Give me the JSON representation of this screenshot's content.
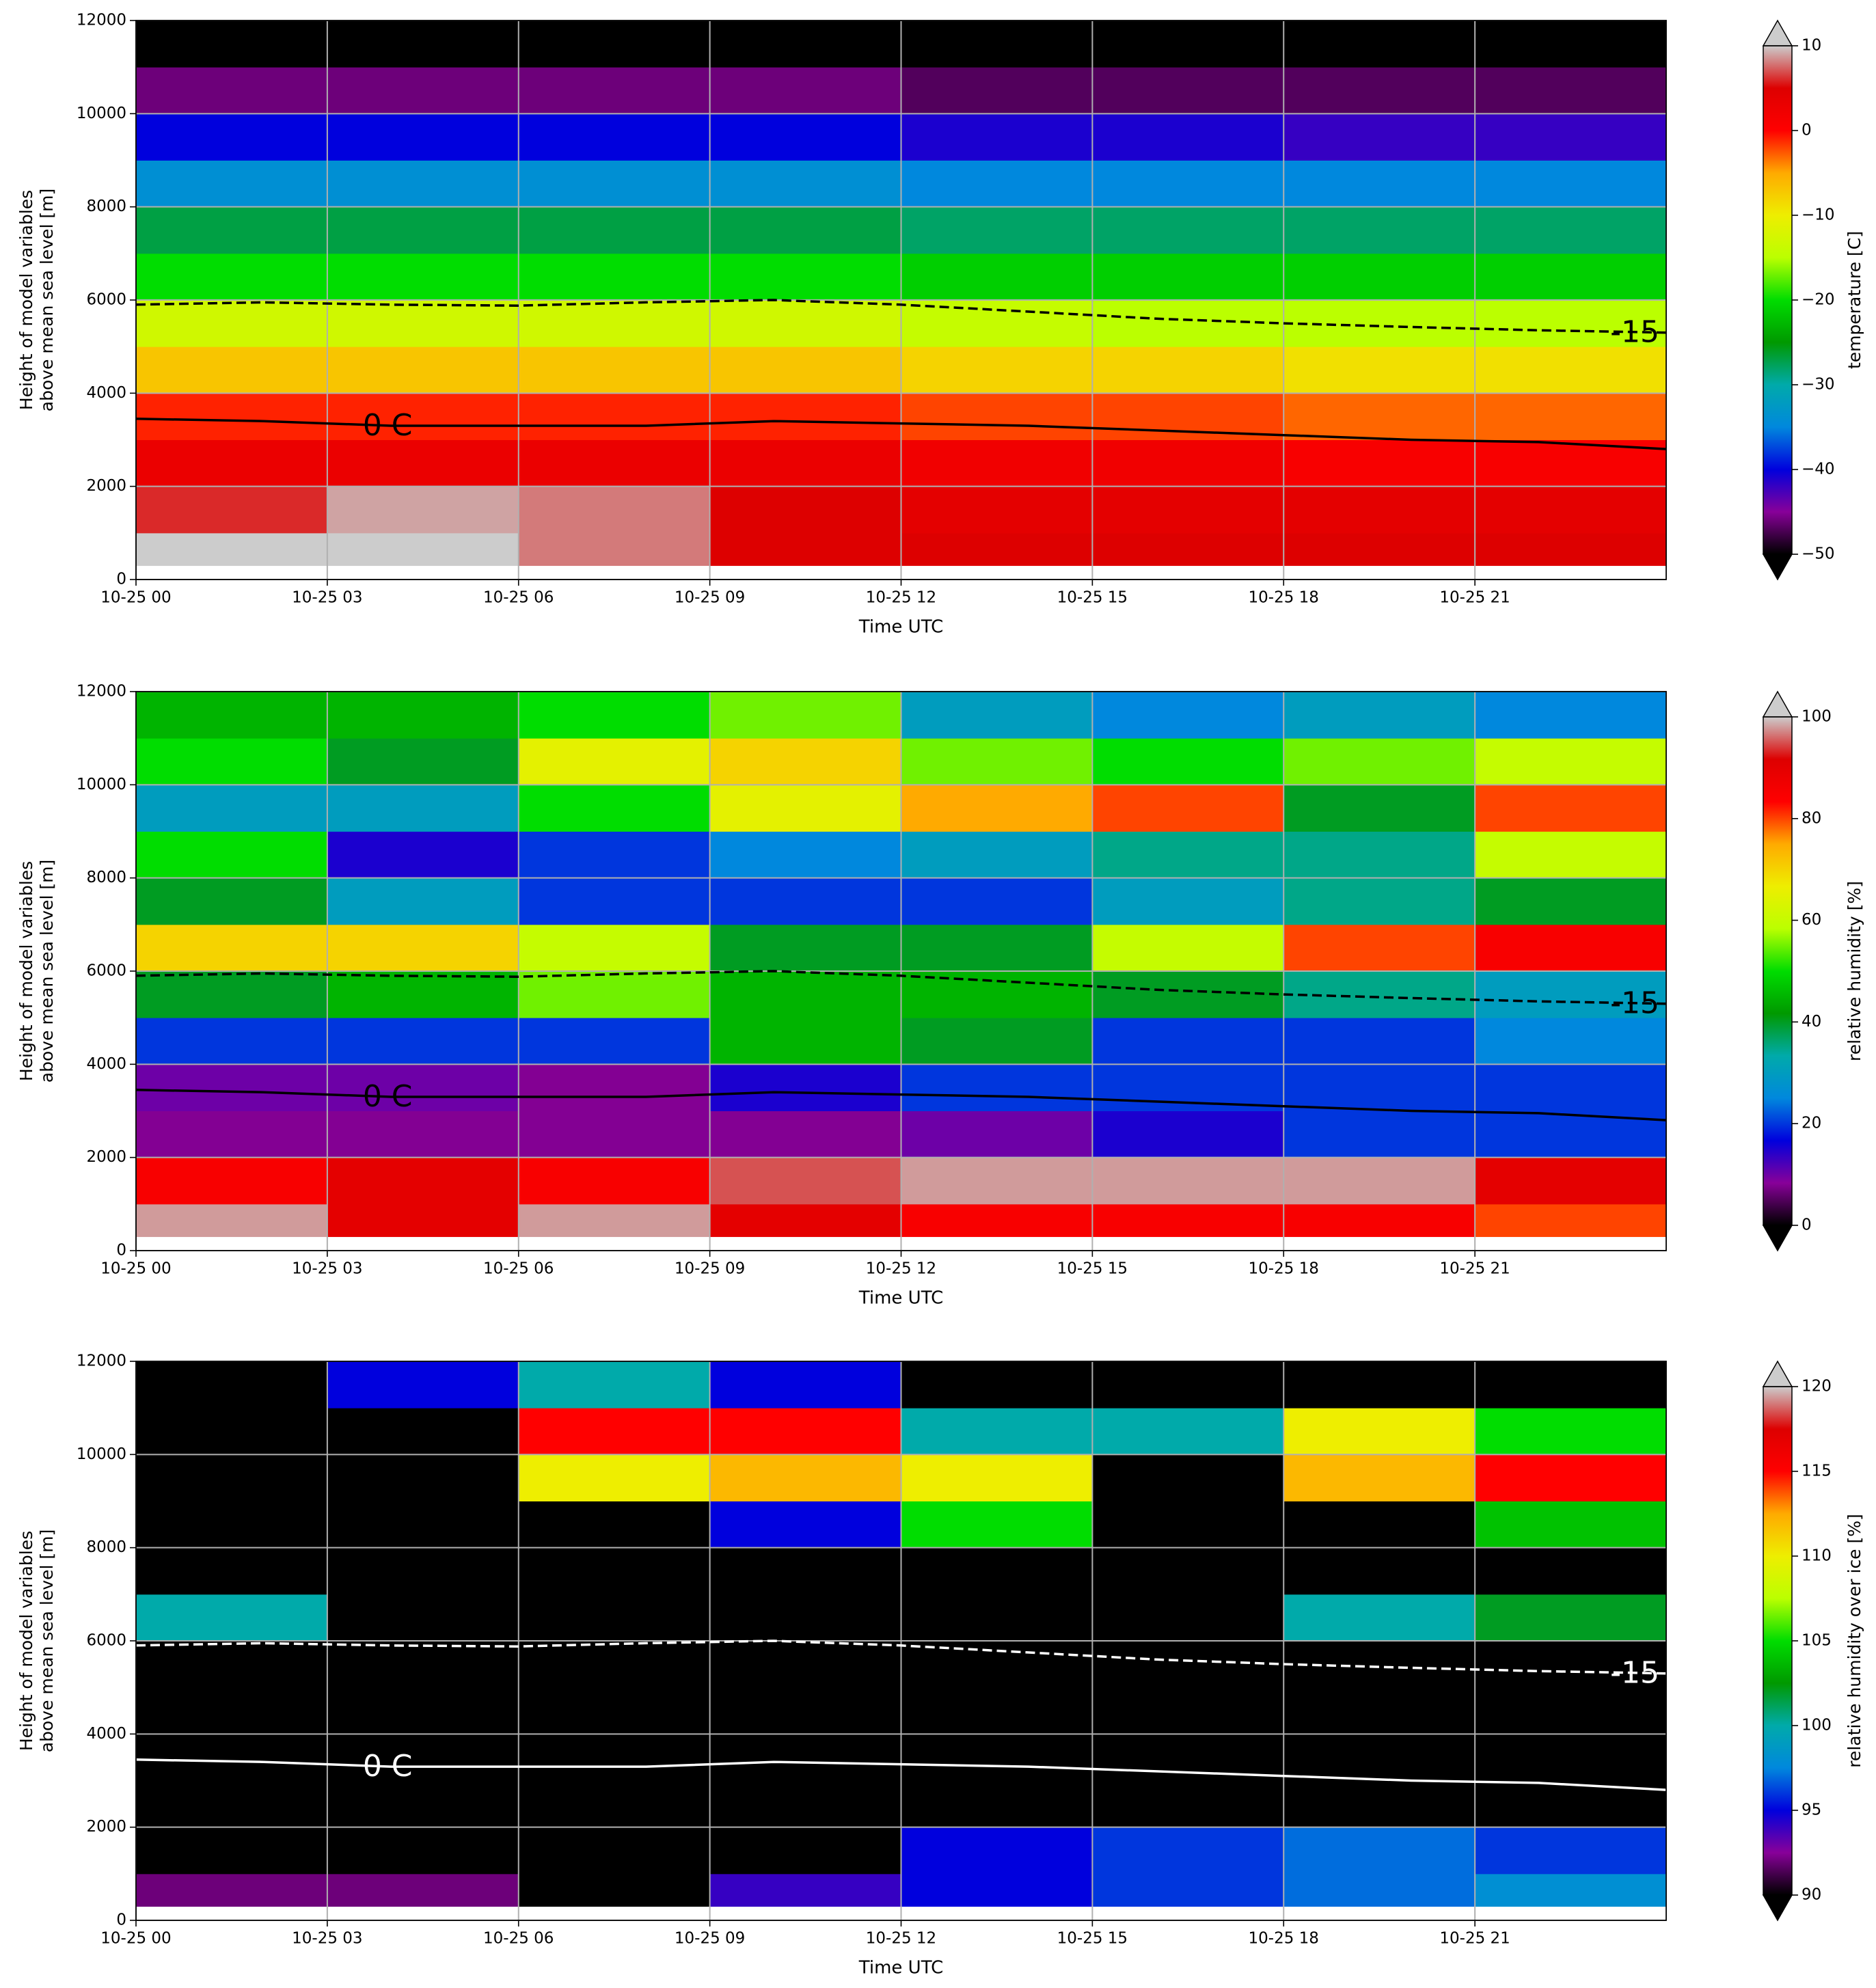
{
  "chart_data": [
    {
      "type": "heatmap",
      "xlabel": "Time UTC",
      "ylabel": [
        "Height of model variables",
        "above mean sea level [m]"
      ],
      "colorbar_label": "temperature [C]",
      "clim": [
        -50,
        10
      ],
      "cticks": [
        {
          "value": -50,
          "label": "−50"
        },
        {
          "value": -40,
          "label": "−40"
        },
        {
          "value": -30,
          "label": "−30"
        },
        {
          "value": -20,
          "label": "−20"
        },
        {
          "value": -10,
          "label": "−10"
        },
        0,
        10
      ],
      "colormap": [
        "#000000",
        "#880099",
        "#0000dd",
        "#0088dd",
        "#00aaaa",
        "#009900",
        "#00dd00",
        "#bbff00",
        "#eeee00",
        "#ffaa00",
        "#ff0000",
        "#dd0000",
        "#cccccc"
      ],
      "xlim": [
        0,
        24
      ],
      "ylim": [
        0,
        12000
      ],
      "xticks": [
        {
          "value": 0,
          "label": "10-25 00"
        },
        {
          "value": 3,
          "label": "10-25 03"
        },
        {
          "value": 6,
          "label": "10-25 06"
        },
        {
          "value": 9,
          "label": "10-25 09"
        },
        {
          "value": 12,
          "label": "10-25 12"
        },
        {
          "value": 15,
          "label": "10-25 15"
        },
        {
          "value": 18,
          "label": "10-25 18"
        },
        {
          "value": 21,
          "label": "10-25 21"
        }
      ],
      "yticks": [
        0,
        2000,
        4000,
        6000,
        8000,
        10000,
        12000
      ],
      "grid": true,
      "x_bins": [
        0,
        3,
        6,
        9,
        12,
        15,
        18,
        21,
        24
      ],
      "y_bins": [
        300,
        1000,
        2000,
        3000,
        4000,
        5000,
        6000,
        7000,
        8000,
        9000,
        10000,
        11000,
        12000
      ],
      "z": [
        [
          11,
          11,
          8,
          5,
          5,
          5,
          5,
          5
        ],
        [
          6,
          9,
          8,
          5,
          4,
          4,
          4,
          4
        ],
        [
          3,
          3,
          3,
          3,
          2,
          2,
          1,
          1
        ],
        [
          -1,
          -1,
          -1,
          -1,
          -2,
          -2,
          -3,
          -3
        ],
        [
          -7,
          -7,
          -7,
          -7,
          -8,
          -8,
          -9,
          -9
        ],
        [
          -13,
          -13,
          -13,
          -13,
          -14,
          -15,
          -15,
          -15
        ],
        [
          -20,
          -20,
          -20,
          -20,
          -21,
          -21,
          -21,
          -21
        ],
        [
          -27,
          -27,
          -27,
          -27,
          -28,
          -28,
          -28,
          -28
        ],
        [
          -34,
          -34,
          -34,
          -34,
          -35,
          -35,
          -35,
          -35
        ],
        [
          -40,
          -40,
          -40,
          -40,
          -41,
          -41,
          -42,
          -42
        ],
        [
          -46,
          -46,
          -46,
          -46,
          -47,
          -47,
          -47,
          -47
        ],
        [
          -55,
          -55,
          -55,
          -55,
          -55,
          -55,
          -55,
          -55
        ]
      ],
      "contour_color": "#000000",
      "contour_x": [
        0,
        2,
        4,
        6,
        8,
        10,
        12,
        14,
        16,
        18,
        20,
        22,
        24
      ],
      "contours": [
        {
          "label": "0 C",
          "style": "solid",
          "values": [
            3450,
            3400,
            3300,
            3300,
            3300,
            3400,
            3350,
            3300,
            3200,
            3100,
            3000,
            2950,
            2800
          ]
        },
        {
          "label": "-15",
          "style": "dashed",
          "values": [
            5900,
            5950,
            5900,
            5880,
            5950,
            6000,
            5900,
            5750,
            5600,
            5500,
            5420,
            5350,
            5300
          ]
        }
      ]
    },
    {
      "type": "heatmap",
      "xlabel": "Time UTC",
      "ylabel": [
        "Height of model variables",
        "above mean sea level [m]"
      ],
      "colorbar_label": "relative humidity [%]",
      "clim": [
        0,
        100
      ],
      "cticks": [
        0,
        20,
        40,
        60,
        80,
        100
      ],
      "colormap": [
        "#000000",
        "#880099",
        "#0000dd",
        "#0088dd",
        "#00aaaa",
        "#009900",
        "#00dd00",
        "#bbff00",
        "#eeee00",
        "#ffaa00",
        "#ff0000",
        "#dd0000",
        "#cccccc"
      ],
      "xlim": [
        0,
        24
      ],
      "ylim": [
        0,
        12000
      ],
      "xticks": [
        {
          "value": 0,
          "label": "10-25 00"
        },
        {
          "value": 3,
          "label": "10-25 03"
        },
        {
          "value": 6,
          "label": "10-25 06"
        },
        {
          "value": 9,
          "label": "10-25 09"
        },
        {
          "value": 12,
          "label": "10-25 12"
        },
        {
          "value": 15,
          "label": "10-25 15"
        },
        {
          "value": 18,
          "label": "10-25 18"
        },
        {
          "value": 21,
          "label": "10-25 21"
        }
      ],
      "yticks": [
        0,
        2000,
        4000,
        6000,
        8000,
        10000,
        12000
      ],
      "grid": true,
      "x_bins": [
        0,
        3,
        6,
        9,
        12,
        15,
        18,
        21,
        24
      ],
      "y_bins": [
        300,
        1000,
        2000,
        3000,
        4000,
        5000,
        6000,
        7000,
        8000,
        9000,
        10000,
        11000,
        12000
      ],
      "z": [
        [
          98,
          90,
          98,
          90,
          85,
          85,
          85,
          80
        ],
        [
          85,
          90,
          85,
          95,
          98,
          98,
          98,
          90
        ],
        [
          8,
          8,
          8,
          8,
          10,
          15,
          20,
          20
        ],
        [
          10,
          10,
          8,
          15,
          20,
          20,
          20,
          20
        ],
        [
          20,
          20,
          20,
          45,
          40,
          20,
          20,
          25
        ],
        [
          40,
          45,
          55,
          45,
          45,
          40,
          35,
          30
        ],
        [
          70,
          70,
          60,
          40,
          40,
          60,
          80,
          85
        ],
        [
          40,
          30,
          20,
          20,
          20,
          30,
          35,
          40
        ],
        [
          50,
          15,
          20,
          25,
          30,
          35,
          35,
          60
        ],
        [
          30,
          30,
          50,
          65,
          75,
          80,
          40,
          80
        ],
        [
          50,
          40,
          65,
          70,
          55,
          50,
          55,
          60
        ],
        [
          45,
          45,
          50,
          55,
          30,
          25,
          30,
          25
        ]
      ],
      "contour_color": "#000000",
      "contour_x": [
        0,
        2,
        4,
        6,
        8,
        10,
        12,
        14,
        16,
        18,
        20,
        22,
        24
      ],
      "contours": [
        {
          "label": "0 C",
          "style": "solid",
          "values": [
            3450,
            3400,
            3300,
            3300,
            3300,
            3400,
            3350,
            3300,
            3200,
            3100,
            3000,
            2950,
            2800
          ]
        },
        {
          "label": "-15",
          "style": "dashed",
          "values": [
            5900,
            5950,
            5900,
            5880,
            5950,
            6000,
            5900,
            5750,
            5600,
            5500,
            5420,
            5350,
            5300
          ]
        }
      ]
    },
    {
      "type": "heatmap",
      "xlabel": "Time UTC",
      "ylabel": [
        "Height of model variables",
        "above mean sea level [m]"
      ],
      "colorbar_label": "relative humidity over ice [%]",
      "clim": [
        90,
        120
      ],
      "cticks": [
        90,
        95,
        100,
        105,
        110,
        115,
        120
      ],
      "colormap": [
        "#000000",
        "#880099",
        "#0000dd",
        "#0088dd",
        "#00aaaa",
        "#009900",
        "#00dd00",
        "#bbff00",
        "#eeee00",
        "#ffaa00",
        "#ff0000",
        "#dd0000",
        "#cccccc"
      ],
      "xlim": [
        0,
        24
      ],
      "ylim": [
        0,
        12000
      ],
      "xticks": [
        {
          "value": 0,
          "label": "10-25 00"
        },
        {
          "value": 3,
          "label": "10-25 03"
        },
        {
          "value": 6,
          "label": "10-25 06"
        },
        {
          "value": 9,
          "label": "10-25 09"
        },
        {
          "value": 12,
          "label": "10-25 12"
        },
        {
          "value": 15,
          "label": "10-25 15"
        },
        {
          "value": 18,
          "label": "10-25 18"
        },
        {
          "value": 21,
          "label": "10-25 21"
        }
      ],
      "yticks": [
        0,
        2000,
        4000,
        6000,
        8000,
        10000,
        12000
      ],
      "grid": true,
      "x_bins": [
        0,
        3,
        6,
        9,
        12,
        15,
        18,
        21,
        24
      ],
      "y_bins": [
        300,
        1000,
        2000,
        3000,
        4000,
        5000,
        6000,
        7000,
        8000,
        9000,
        10000,
        11000,
        12000
      ],
      "z": [
        [
          92,
          92,
          80,
          94,
          95,
          96,
          97,
          98
        ],
        [
          80,
          80,
          80,
          80,
          95,
          96,
          97,
          96
        ],
        [
          80,
          80,
          80,
          80,
          80,
          80,
          80,
          80
        ],
        [
          80,
          80,
          80,
          80,
          80,
          80,
          80,
          80
        ],
        [
          80,
          80,
          80,
          80,
          80,
          80,
          80,
          80
        ],
        [
          80,
          80,
          80,
          80,
          80,
          80,
          80,
          80
        ],
        [
          100,
          80,
          80,
          80,
          80,
          80,
          100,
          102
        ],
        [
          80,
          80,
          80,
          80,
          80,
          80,
          80,
          80
        ],
        [
          80,
          80,
          80,
          95,
          105,
          80,
          80,
          104
        ],
        [
          80,
          80,
          110,
          112,
          110,
          80,
          112,
          115
        ],
        [
          80,
          80,
          115,
          115,
          100,
          100,
          110,
          105
        ],
        [
          80,
          95,
          100,
          95,
          80,
          80,
          80,
          80
        ]
      ],
      "contour_color": "#ffffff",
      "contour_x": [
        0,
        2,
        4,
        6,
        8,
        10,
        12,
        14,
        16,
        18,
        20,
        22,
        24
      ],
      "contours": [
        {
          "label": "0 C",
          "style": "solid",
          "values": [
            3450,
            3400,
            3300,
            3300,
            3300,
            3400,
            3350,
            3300,
            3200,
            3100,
            3000,
            2950,
            2800
          ]
        },
        {
          "label": "-15",
          "style": "dashed",
          "values": [
            5900,
            5950,
            5900,
            5880,
            5950,
            6000,
            5900,
            5750,
            5600,
            5500,
            5420,
            5350,
            5300
          ]
        }
      ]
    }
  ]
}
